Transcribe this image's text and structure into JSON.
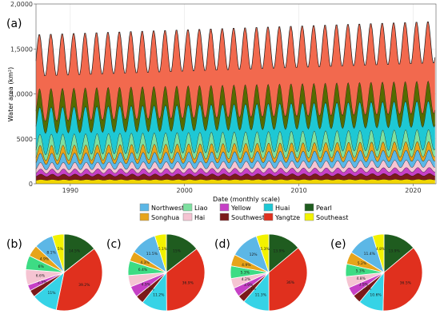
{
  "chart_data": [
    {
      "type": "area",
      "panel_label": "(a)",
      "stacked": true,
      "xlabel": "Date (monthly scale)",
      "ylabel": "Water area (km²)",
      "x_range": [
        "1987-01",
        "2021-12"
      ],
      "ylim": [
        0,
        20000
      ],
      "y_ticks": [
        0,
        5000,
        10000,
        15000,
        20000
      ],
      "y_tick_labels": [
        "0",
        "5000",
        "1,0000",
        "1,5000",
        "2,0000"
      ],
      "x_ticks": [
        1990,
        2000,
        2010,
        2020
      ],
      "x_tick_labels": [
        "1990",
        "2000",
        "2010",
        "2020"
      ],
      "grid": true,
      "seasonal_period_months": 12,
      "series": [
        {
          "name": "Southeast",
          "color": "#f2d600",
          "start": 450,
          "end": 480,
          "amp": 40
        },
        {
          "name": "Southwest",
          "color": "#7b1a1a",
          "start": 500,
          "end": 540,
          "amp": 100
        },
        {
          "name": "Yellow",
          "color": "#c640c6",
          "start": 450,
          "end": 550,
          "amp": 120
        },
        {
          "name": "Hai",
          "color": "#f5c4d2",
          "start": 560,
          "end": 680,
          "amp": 160
        },
        {
          "name": "Northwest",
          "color": "#5cb7e6",
          "start": 820,
          "end": 900,
          "amp": 220
        },
        {
          "name": "Songhua",
          "color": "#e7a41a",
          "start": 650,
          "end": 720,
          "amp": 250
        },
        {
          "name": "Liao",
          "color": "#7de0a0",
          "start": 950,
          "end": 1050,
          "amp": 300
        },
        {
          "name": "Huai",
          "color": "#1ec8d4",
          "start": 2700,
          "end": 2880,
          "amp": 350
        },
        {
          "name": "Pearl",
          "color": "#556b00",
          "start": 1700,
          "end": 1850,
          "amp": 400
        },
        {
          "name": "Yangtze",
          "color": "#f2694e",
          "start": 5500,
          "end": 6100,
          "amp": 600
        }
      ]
    },
    {
      "type": "pie",
      "panel_label": "(b)",
      "slices": [
        {
          "name": "Pearl",
          "value": 14.5,
          "label": "14.5%"
        },
        {
          "name": "Yangtze",
          "value": 39.2,
          "label": "39.2%"
        },
        {
          "name": "Huai",
          "value": 11,
          "label": "11%"
        },
        {
          "name": "Southwest",
          "value": 3,
          "label": ""
        },
        {
          "name": "Yellow",
          "value": 2.5,
          "label": "2.5%"
        },
        {
          "name": "Hai",
          "value": 6.6,
          "label": "6.6%"
        },
        {
          "name": "Liao",
          "value": 6,
          "label": "6%"
        },
        {
          "name": "Songhua",
          "value": 4.9,
          "label": "4.9%"
        },
        {
          "name": "Northwest",
          "value": 8.1,
          "label": "8.1%"
        },
        {
          "name": "Southeast",
          "value": 5,
          "label": "5%"
        }
      ]
    },
    {
      "type": "pie",
      "panel_label": "(c)",
      "slices": [
        {
          "name": "Pearl",
          "value": 15,
          "label": "15%"
        },
        {
          "name": "Yangtze",
          "value": 36.9,
          "label": "36.9%"
        },
        {
          "name": "Huai",
          "value": 11.2,
          "label": "11.2%"
        },
        {
          "name": "Southwest",
          "value": 3.7,
          "label": "3.7%"
        },
        {
          "name": "Yellow",
          "value": 4.9,
          "label": "4.9%"
        },
        {
          "name": "Hai",
          "value": 5,
          "label": ""
        },
        {
          "name": "Liao",
          "value": 6.4,
          "label": "6.4%"
        },
        {
          "name": "Songhua",
          "value": 4.3,
          "label": "4.3%"
        },
        {
          "name": "Northwest",
          "value": 11.5,
          "label": "11.5%"
        },
        {
          "name": "Southeast",
          "value": 5.1,
          "label": "5.1%"
        }
      ]
    },
    {
      "type": "pie",
      "panel_label": "(d)",
      "slices": [
        {
          "name": "Pearl",
          "value": 13.9,
          "label": "13.9%"
        },
        {
          "name": "Yangtze",
          "value": 36,
          "label": "36%"
        },
        {
          "name": "Huai",
          "value": 11.3,
          "label": "11.3%"
        },
        {
          "name": "Southwest",
          "value": 3.1,
          "label": "3.1%"
        },
        {
          "name": "Yellow",
          "value": 3.9,
          "label": "3.9%"
        },
        {
          "name": "Hai",
          "value": 4.2,
          "label": "4.2%"
        },
        {
          "name": "Liao",
          "value": 5.3,
          "label": "5.3%"
        },
        {
          "name": "Songhua",
          "value": 4.9,
          "label": "4.9%"
        },
        {
          "name": "Northwest",
          "value": 12,
          "label": "12%"
        },
        {
          "name": "Southeast",
          "value": 5.3,
          "label": "5.3%"
        }
      ]
    },
    {
      "type": "pie",
      "panel_label": "(e)",
      "slices": [
        {
          "name": "Pearl",
          "value": 13.9,
          "label": "13.9%"
        },
        {
          "name": "Yangtze",
          "value": 36.5,
          "label": "36.5%"
        },
        {
          "name": "Huai",
          "value": 10.6,
          "label": "10.6%"
        },
        {
          "name": "Southwest",
          "value": 3.6,
          "label": "3.6%"
        },
        {
          "name": "Yellow",
          "value": 3.9,
          "label": "3.9%"
        },
        {
          "name": "Hai",
          "value": 4.8,
          "label": "4.8%"
        },
        {
          "name": "Liao",
          "value": 5.3,
          "label": "5.3%"
        },
        {
          "name": "Songhua",
          "value": 5.2,
          "label": "5.2%"
        },
        {
          "name": "Northwest",
          "value": 11.4,
          "label": "11.4%"
        },
        {
          "name": "Southeast",
          "value": 4.8,
          "label": "4.8%"
        }
      ]
    }
  ],
  "legend": {
    "placement": "between-panels",
    "columns": [
      [
        {
          "name": "Northwest",
          "color": "#5cb7e6"
        },
        {
          "name": "Songhua",
          "color": "#e7a41a"
        }
      ],
      [
        {
          "name": "Liao",
          "color": "#7de0a0"
        },
        {
          "name": "Hai",
          "color": "#f5c4d2"
        }
      ],
      [
        {
          "name": "Yellow",
          "color": "#c640c6"
        },
        {
          "name": "Southwest",
          "color": "#7b1a1a"
        }
      ],
      [
        {
          "name": "Huai",
          "color": "#1ec8d4"
        },
        {
          "name": "Yangtze",
          "color": "#e0301e"
        }
      ],
      [
        {
          "name": "Pearl",
          "color": "#1f5c1f"
        },
        {
          "name": "Southeast",
          "color": "#f2f200"
        }
      ]
    ]
  },
  "pie_colors": {
    "Pearl": "#1f5c1f",
    "Yangtze": "#e0301e",
    "Huai": "#36d3e6",
    "Southwest": "#7b1a1a",
    "Yellow": "#c640c6",
    "Hai": "#f5c4d2",
    "Liao": "#3ddc84",
    "Songhua": "#e7a41a",
    "Northwest": "#5cb7e6",
    "Southeast": "#f2f200"
  }
}
